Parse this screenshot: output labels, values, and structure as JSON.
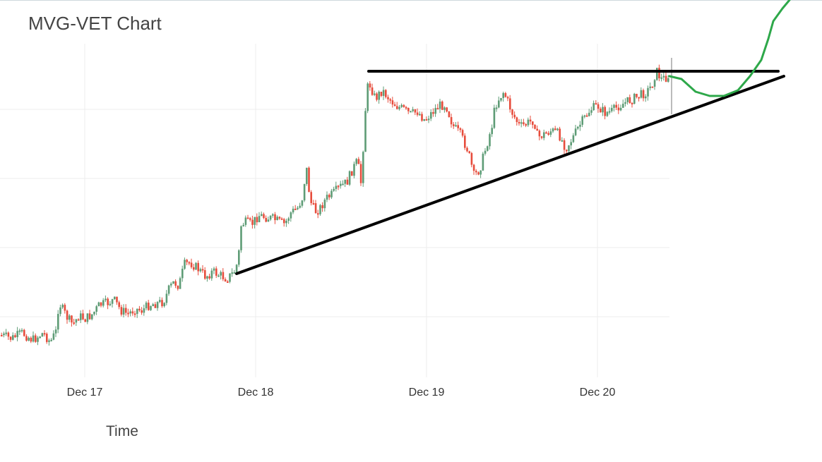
{
  "chart_data": {
    "type": "candlestick",
    "title": "MVG-VET Chart",
    "xlabel": "Time",
    "ylabel": "",
    "x_ticks": [
      "Dec 17",
      "Dec 18",
      "Dec 19",
      "Dec 20"
    ],
    "x_range": [
      "Dec 16 14:00",
      "Dec 20 10:00"
    ],
    "grid": true,
    "colors": {
      "increasing": "#5e9c76",
      "decreasing": "#e74c3c",
      "support": "#000000",
      "resistance": "#000000",
      "projection": "#2ea84a",
      "grid": "#ececec"
    },
    "price_path": [
      [
        0,
        475
      ],
      [
        15,
        480
      ],
      [
        30,
        472
      ],
      [
        45,
        482
      ],
      [
        60,
        472
      ],
      [
        70,
        485
      ],
      [
        78,
        470
      ],
      [
        82,
        428
      ],
      [
        88,
        440
      ],
      [
        95,
        452
      ],
      [
        102,
        460
      ],
      [
        110,
        448
      ],
      [
        120,
        452
      ],
      [
        130,
        445
      ],
      [
        140,
        432
      ],
      [
        150,
        430
      ],
      [
        160,
        425
      ],
      [
        170,
        440
      ],
      [
        180,
        445
      ],
      [
        190,
        438
      ],
      [
        200,
        440
      ],
      [
        210,
        432
      ],
      [
        220,
        430
      ],
      [
        230,
        428
      ],
      [
        238,
        410
      ],
      [
        245,
        400
      ],
      [
        252,
        405
      ],
      [
        260,
        375
      ],
      [
        268,
        372
      ],
      [
        278,
        380
      ],
      [
        290,
        392
      ],
      [
        300,
        385
      ],
      [
        310,
        390
      ],
      [
        320,
        395
      ],
      [
        330,
        386
      ],
      [
        336,
        370
      ],
      [
        340,
        320
      ],
      [
        345,
        315
      ],
      [
        355,
        318
      ],
      [
        365,
        305
      ],
      [
        375,
        308
      ],
      [
        385,
        310
      ],
      [
        395,
        315
      ],
      [
        402,
        318
      ],
      [
        410,
        302
      ],
      [
        420,
        295
      ],
      [
        428,
        278
      ],
      [
        432,
        232
      ],
      [
        438,
        285
      ],
      [
        445,
        300
      ],
      [
        452,
        295
      ],
      [
        460,
        282
      ],
      [
        470,
        275
      ],
      [
        480,
        265
      ],
      [
        490,
        258
      ],
      [
        498,
        240
      ],
      [
        505,
        228
      ],
      [
        510,
        260
      ],
      [
        515,
        175
      ],
      [
        518,
        125
      ],
      [
        523,
        120
      ],
      [
        530,
        140
      ],
      [
        540,
        128
      ],
      [
        550,
        140
      ],
      [
        560,
        150
      ],
      [
        570,
        155
      ],
      [
        580,
        162
      ],
      [
        590,
        158
      ],
      [
        600,
        170
      ],
      [
        610,
        160
      ],
      [
        620,
        150
      ],
      [
        630,
        148
      ],
      [
        640,
        178
      ],
      [
        650,
        190
      ],
      [
        660,
        210
      ],
      [
        665,
        228
      ],
      [
        670,
        250
      ],
      [
        678,
        240
      ],
      [
        688,
        205
      ],
      [
        695,
        180
      ],
      [
        700,
        150
      ],
      [
        705,
        140
      ],
      [
        712,
        130
      ],
      [
        718,
        145
      ],
      [
        725,
        162
      ],
      [
        735,
        180
      ],
      [
        745,
        175
      ],
      [
        755,
        170
      ],
      [
        760,
        195
      ],
      [
        770,
        190
      ],
      [
        780,
        185
      ],
      [
        790,
        190
      ],
      [
        800,
        210
      ],
      [
        810,
        195
      ],
      [
        818,
        180
      ],
      [
        828,
        165
      ],
      [
        835,
        155
      ],
      [
        845,
        150
      ],
      [
        855,
        160
      ],
      [
        865,
        158
      ],
      [
        875,
        150
      ],
      [
        885,
        145
      ],
      [
        895,
        140
      ],
      [
        905,
        135
      ],
      [
        915,
        130
      ],
      [
        922,
        120
      ],
      [
        928,
        100
      ],
      [
        935,
        112
      ],
      [
        942,
        110
      ],
      [
        948,
        105
      ]
    ],
    "support_line": [
      [
        335,
        388
      ],
      [
        1110,
        108
      ]
    ],
    "resistance_line": [
      [
        522,
        101
      ],
      [
        1102,
        101
      ]
    ],
    "projection_curve": [
      [
        948,
        108
      ],
      [
        965,
        112
      ],
      [
        985,
        130
      ],
      [
        1005,
        136
      ],
      [
        1025,
        136
      ],
      [
        1045,
        128
      ],
      [
        1062,
        108
      ],
      [
        1078,
        85
      ],
      [
        1088,
        55
      ],
      [
        1095,
        30
      ],
      [
        1108,
        12
      ],
      [
        1118,
        0
      ]
    ]
  }
}
